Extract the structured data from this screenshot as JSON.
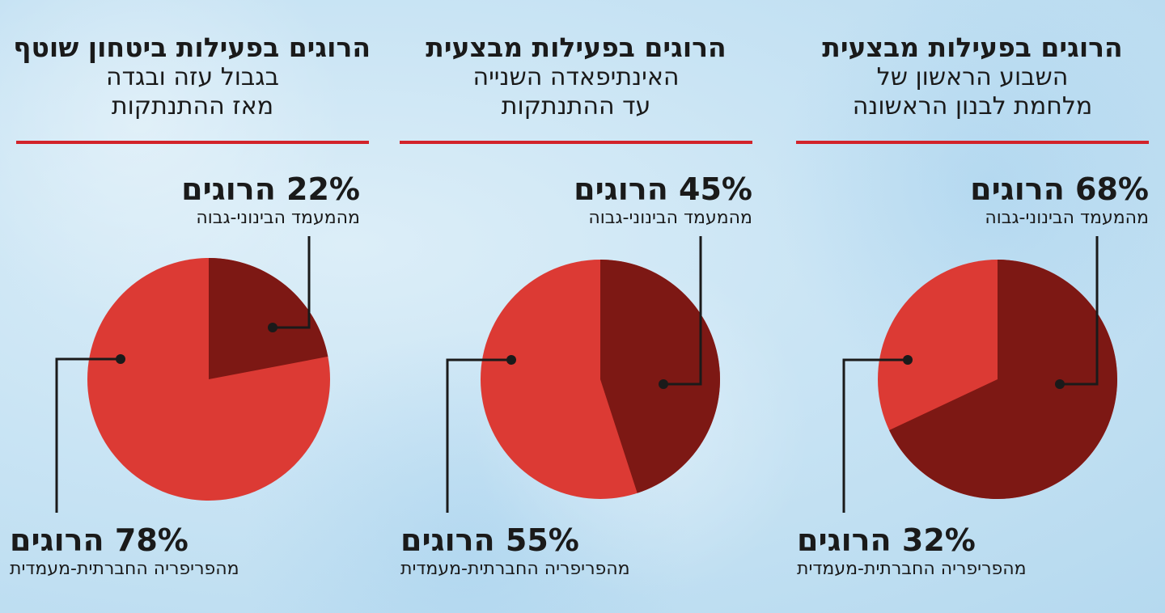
{
  "colors": {
    "highlight": "#7d1814",
    "periphery": "#dc3a34",
    "rule": "#d2232a",
    "leader": "#1a1a1a"
  },
  "panels": [
    {
      "title_bold": "הרוגים בפעילות ביטחון שוטף",
      "title_lines": [
        "בגבול עזה ובגדה",
        "מאז ההתנתקות"
      ],
      "top_label_big": "22% הרוגים",
      "top_label_small": "מהמעמד הבינוני-גבוה",
      "bottom_label_big": "78% הרוגים",
      "bottom_label_small": "מהפריפריה החברתית-מעמדית"
    },
    {
      "title_bold": "הרוגים בפעילות מבצעית",
      "title_lines": [
        "האינתיפאדה השנייה",
        "עד ההתנתקות"
      ],
      "top_label_big": "45% הרוגים",
      "top_label_small": "מהמעמד הבינוני-גבוה",
      "bottom_label_big": "55% הרוגים",
      "bottom_label_small": "מהפריפריה החברתית-מעמדית"
    },
    {
      "title_bold": "הרוגים בפעילות מבצעית",
      "title_lines": [
        "השבוע הראשון של",
        "מלחמת לבנון הראשונה"
      ],
      "top_label_big": "68% הרוגים",
      "top_label_small": "מהמעמד הבינוני-גבוה",
      "bottom_label_big": "32% הרוגים",
      "bottom_label_small": "מהפריפריה החברתית-מעמדית"
    }
  ],
  "chart_data": [
    {
      "type": "pie",
      "title": "הרוגים בפעילות ביטחון שוטף בגבול עזה ובגדה מאז ההתנתקות",
      "categories": [
        "מהמעמד הבינוני-גבוה",
        "מהפריפריה החברתית-מעמדית"
      ],
      "values": [
        22,
        78
      ]
    },
    {
      "type": "pie",
      "title": "הרוגים בפעילות מבצעית האינתיפאדה השנייה עד ההתנתקות",
      "categories": [
        "מהמעמד הבינוני-גבוה",
        "מהפריפריה החברתית-מעמדית"
      ],
      "values": [
        45,
        55
      ]
    },
    {
      "type": "pie",
      "title": "הרוגים בפעילות מבצעית השבוע הראשון של מלחמת לבנון הראשונה",
      "categories": [
        "מהמעמד הבינוני-גבוה",
        "מהפריפריה החברתית-מעמדית"
      ],
      "values": [
        68,
        32
      ]
    }
  ]
}
